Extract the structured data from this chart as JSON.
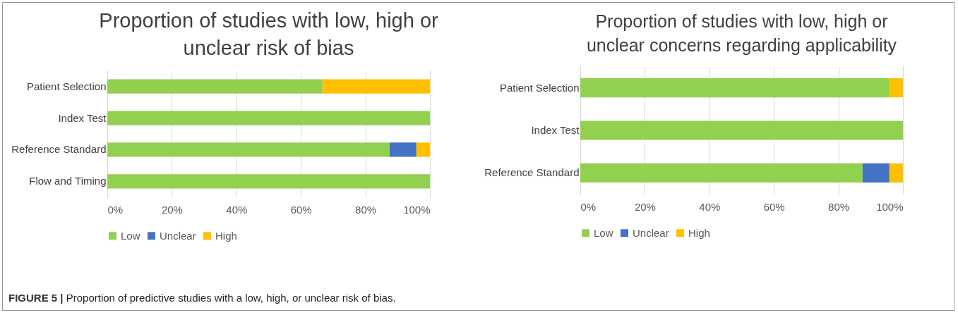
{
  "chart_data": [
    {
      "type": "bar",
      "orientation": "horizontal",
      "stacked": true,
      "title": "Proportion of studies with low, high or unclear risk of bias",
      "categories": [
        "Patient Selection",
        "Index Test",
        "Reference Standard",
        "Flow and Timing"
      ],
      "series": [
        {
          "name": "Low",
          "color": "#92d050",
          "values": [
            66.7,
            100,
            87.5,
            100
          ]
        },
        {
          "name": "Unclear",
          "color": "#4472c4",
          "values": [
            0,
            0,
            8.3,
            0
          ]
        },
        {
          "name": "High",
          "color": "#ffc000",
          "values": [
            33.3,
            0,
            4.2,
            0
          ]
        }
      ],
      "xlim": [
        0,
        100
      ],
      "xticks": [
        {
          "value": 0,
          "label": "0%"
        },
        {
          "value": 20,
          "label": "20%"
        },
        {
          "value": 40,
          "label": "40%"
        },
        {
          "value": 60,
          "label": "60%"
        },
        {
          "value": 80,
          "label": "80%"
        },
        {
          "value": 100,
          "label": "100%"
        }
      ],
      "grid": "x",
      "legend": "bottom",
      "annotations": [
        "FIGURE 5 | Proportion of predictive studies with a low, high, or unclear risk of bias."
      ]
    },
    {
      "type": "bar",
      "orientation": "horizontal",
      "stacked": true,
      "title": "Proportion of studies with low, high or unclear concerns regarding applicability",
      "categories": [
        "Patient Selection",
        "Index Test",
        "Reference Standard"
      ],
      "series": [
        {
          "name": "Low",
          "color": "#92d050",
          "values": [
            95.8,
            100,
            87.5
          ]
        },
        {
          "name": "Unclear",
          "color": "#4472c4",
          "values": [
            0,
            0,
            8.3
          ]
        },
        {
          "name": "High",
          "color": "#ffc000",
          "values": [
            4.2,
            0,
            4.2
          ]
        }
      ],
      "xlim": [
        0,
        100
      ],
      "xticks": [
        {
          "value": 0,
          "label": "0%"
        },
        {
          "value": 20,
          "label": "20%"
        },
        {
          "value": 40,
          "label": "40%"
        },
        {
          "value": 60,
          "label": "60%"
        },
        {
          "value": 80,
          "label": "80%"
        },
        {
          "value": 100,
          "label": "100%"
        }
      ],
      "grid": "x",
      "legend": "bottom"
    }
  ]
}
